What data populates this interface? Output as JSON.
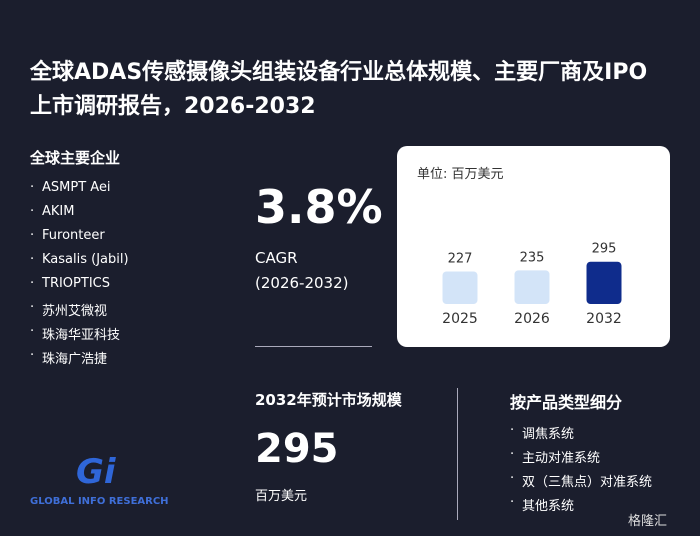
{
  "header": {
    "title": "全球ADAS传感摄像头组装设备行业总体规模、主要厂商及IPO上市调研报告，2026-2032"
  },
  "companies": {
    "title": "全球主要企业",
    "items": [
      "ASMPT Aei",
      "AKIM",
      "Furonteer",
      "Kasalis (Jabil)",
      "TRIOPTICS",
      "苏州艾微视",
      "珠海华亚科技",
      "珠海广浩捷"
    ]
  },
  "cagr": {
    "value": "3.8%",
    "label": "CAGR",
    "period": "(2026-2032)"
  },
  "chart_data": {
    "type": "bar",
    "unit": "单位: 百万美元",
    "categories": [
      "2025",
      "2026",
      "2032"
    ],
    "values": [
      227,
      235,
      295
    ],
    "colors": [
      "#d3e4f8",
      "#d3e4f8",
      "#0f2c8c"
    ],
    "ylim": [
      0,
      300
    ]
  },
  "market": {
    "title": "2032年预计市场规模",
    "value": "295",
    "unit": "百万美元"
  },
  "segments": {
    "title": "按产品类型细分",
    "items": [
      "调焦系统",
      "主动对准系统",
      "双（三焦点）对准系统",
      "其他系统"
    ]
  },
  "logo": {
    "mark": "Gi",
    "text": "GLOBAL INFO RESEARCH"
  },
  "watermark": {
    "text": "格隆汇"
  }
}
